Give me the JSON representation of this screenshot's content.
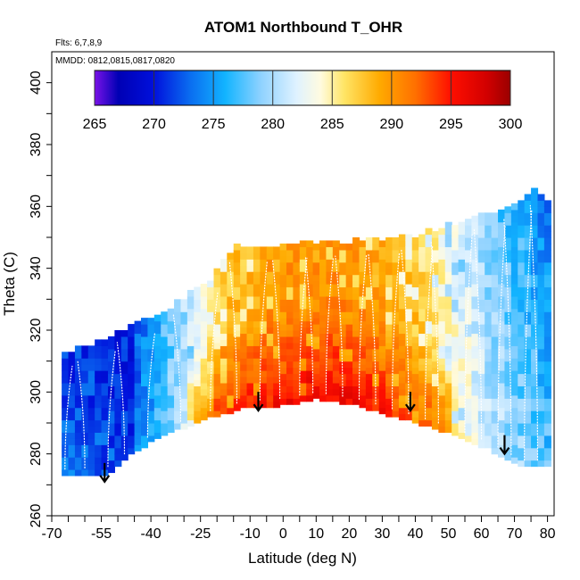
{
  "chart_data": {
    "type": "heatmap",
    "title": "ATOM1 Northbound T_OHR",
    "flights_label": "Flts: 6,7,8,9",
    "dates_label": "MMDD: 0812,0815,0817,0820",
    "xlabel": "Latitude (deg N)",
    "ylabel": "Theta (C)",
    "xlim": [
      -70,
      82
    ],
    "ylim": [
      260,
      410
    ],
    "x_ticks": [
      -70,
      -55,
      -40,
      -25,
      -10,
      0,
      10,
      20,
      30,
      40,
      50,
      60,
      70,
      80
    ],
    "y_ticks": [
      260,
      280,
      300,
      320,
      340,
      360,
      380,
      400
    ],
    "colorbar": {
      "min": 265,
      "max": 300,
      "ticks": [
        265,
        270,
        275,
        280,
        285,
        290,
        295,
        300
      ],
      "stops": [
        {
          "value": 265,
          "color": "#7a12e8"
        },
        {
          "value": 267,
          "color": "#0000b4"
        },
        {
          "value": 270,
          "color": "#0010dc"
        },
        {
          "value": 273,
          "color": "#0a6cf0"
        },
        {
          "value": 276,
          "color": "#12b4ff"
        },
        {
          "value": 279,
          "color": "#8fd2ff"
        },
        {
          "value": 282,
          "color": "#dff2ff"
        },
        {
          "value": 284,
          "color": "#fffbe0"
        },
        {
          "value": 286,
          "color": "#ffe566"
        },
        {
          "value": 289,
          "color": "#ffaa00"
        },
        {
          "value": 292,
          "color": "#ff7000"
        },
        {
          "value": 295,
          "color": "#ff0f00"
        },
        {
          "value": 298,
          "color": "#d20000"
        },
        {
          "value": 300,
          "color": "#9a0000"
        }
      ]
    },
    "field": {
      "lat_min": -67,
      "lat_max": 80,
      "lat_step": 2,
      "theta_step": 2,
      "surface_lower": [
        {
          "lat": -67,
          "theta": 273
        },
        {
          "lat": -52,
          "theta": 274
        },
        {
          "lat": -45,
          "theta": 281
        },
        {
          "lat": -35,
          "theta": 287
        },
        {
          "lat": -22,
          "theta": 292
        },
        {
          "lat": -12,
          "theta": 295
        },
        {
          "lat": 0,
          "theta": 296
        },
        {
          "lat": 10,
          "theta": 298
        },
        {
          "lat": 22,
          "theta": 296
        },
        {
          "lat": 35,
          "theta": 292
        },
        {
          "lat": 50,
          "theta": 287
        },
        {
          "lat": 62,
          "theta": 282
        },
        {
          "lat": 72,
          "theta": 276
        },
        {
          "lat": 80,
          "theta": 276
        }
      ],
      "surface_upper": [
        {
          "lat": -67,
          "theta": 312
        },
        {
          "lat": -55,
          "theta": 316
        },
        {
          "lat": -48,
          "theta": 320
        },
        {
          "lat": -35,
          "theta": 326
        },
        {
          "lat": -22,
          "theta": 336
        },
        {
          "lat": -15,
          "theta": 346
        },
        {
          "lat": 0,
          "theta": 347
        },
        {
          "lat": 20,
          "theta": 348
        },
        {
          "lat": 40,
          "theta": 350
        },
        {
          "lat": 55,
          "theta": 355
        },
        {
          "lat": 65,
          "theta": 358
        },
        {
          "lat": 72,
          "theta": 362
        },
        {
          "lat": 76,
          "theta": 365
        },
        {
          "lat": 80,
          "theta": 362
        }
      ]
    },
    "flight_profile_lats": [
      -66,
      -60,
      -53,
      -48,
      -41,
      -31,
      -22,
      -14,
      -7,
      -1,
      5,
      9,
      13,
      18,
      23,
      28,
      33,
      38,
      43,
      47,
      55,
      60,
      65,
      69,
      73,
      77
    ],
    "arrows": [
      {
        "lat": -54,
        "theta": 271
      },
      {
        "lat": -7.5,
        "theta": 294
      },
      {
        "lat": 38.5,
        "theta": 294
      },
      {
        "lat": 67,
        "theta": 280
      }
    ]
  }
}
